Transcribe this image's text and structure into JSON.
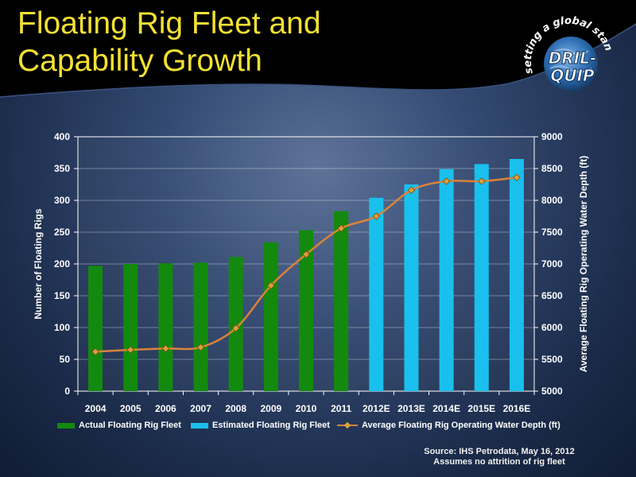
{
  "slide": {
    "title_line1": "Floating Rig Fleet and",
    "title_line2": "Capability Growth",
    "logo": {
      "tagline": "setting a global standard",
      "name_line1": "DRIL-",
      "name_line2": "QUIP"
    },
    "source_line1": "Source: IHS Petrodata, May 16, 2012",
    "source_line2": "Assumes no attrition of rig fleet"
  },
  "colors": {
    "title": "#f2e033",
    "actual_bar": "#138a0e",
    "estimated_bar": "#19c0ee",
    "line": "#d9833a",
    "marker": "#d9a13a"
  },
  "chart_data": {
    "type": "bar",
    "categories": [
      "2004",
      "2005",
      "2006",
      "2007",
      "2008",
      "2009",
      "2010",
      "2011",
      "2012E",
      "2013E",
      "2014E",
      "2015E",
      "2016E"
    ],
    "series": [
      {
        "name": "Actual Floating Rig Fleet",
        "axis": "left",
        "type": "bar",
        "values": [
          197,
          200,
          201,
          202,
          211,
          234,
          253,
          283,
          null,
          null,
          null,
          null,
          null
        ]
      },
      {
        "name": "Estimated Floating Rig Fleet",
        "axis": "left",
        "type": "bar",
        "values": [
          null,
          null,
          null,
          null,
          null,
          null,
          null,
          null,
          304,
          325,
          349,
          357,
          365
        ]
      },
      {
        "name": "Average Floating Rig Operating Water Depth (ft)",
        "axis": "right",
        "type": "line",
        "values": [
          5620,
          5650,
          5670,
          5690,
          5990,
          6660,
          7150,
          7560,
          7750,
          8160,
          8300,
          8300,
          8360
        ]
      }
    ],
    "ylabel": "Number of Floating Rigs",
    "y2label": "Average Floating Rig Operating Water Depth (ft)",
    "ylim": [
      0,
      400
    ],
    "y2lim": [
      5000,
      9000
    ],
    "yticks": [
      0,
      50,
      100,
      150,
      200,
      250,
      300,
      350,
      400
    ],
    "y2ticks": [
      5000,
      5500,
      6000,
      6500,
      7000,
      7500,
      8000,
      8500,
      9000
    ],
    "grid": "horizontal",
    "legend": "bottom"
  }
}
